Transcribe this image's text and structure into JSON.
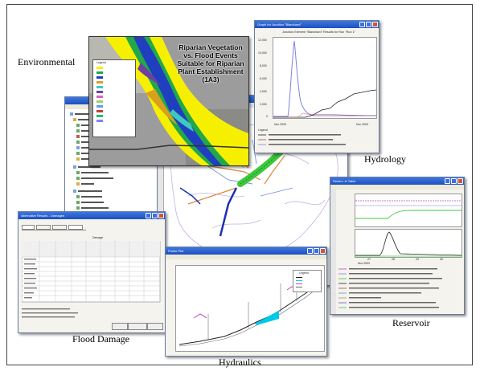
{
  "captions": {
    "environmental": "Environmental",
    "hydrology": "Hydrology",
    "reservoir": "Reservoir",
    "flood_damage": "Flood Damage",
    "hydraulics": "Hydraulics"
  },
  "windows": {
    "hydrology": {
      "title": "Graph for Junction \"Blanchard\"",
      "plot_title": "Junction Element \"Blanchard\" Results for Run \"Run 1\"",
      "legend_header": "Legend",
      "x_start": "Nov 2003",
      "x_end": "Dec 2003",
      "y_ticks": [
        "12,000",
        "10,000",
        "8,000",
        "6,000",
        "4,000",
        "2,000",
        "0"
      ]
    },
    "environmental": {
      "map_title": "Riparian Vegetation vs. Flood Events Suitable for Riparian Plant Establishment (1A3)"
    },
    "reservoir": {
      "title": "Reserv. in Table",
      "x_labels": [
        "27",
        "28",
        "29",
        "30"
      ],
      "x_month": "Nov 2003"
    },
    "flood_damage": {
      "title": "Alternative Results - Damages",
      "table_title": "Damage"
    },
    "hydraulics": {
      "title": "Profile Plot",
      "plot_title": "Legend"
    }
  },
  "colors": {
    "title_bar": "#1d4fc0",
    "hydrograph": "#8080e0",
    "flood_green": "#3cc83c",
    "water_cyan": "#00c8e8"
  }
}
